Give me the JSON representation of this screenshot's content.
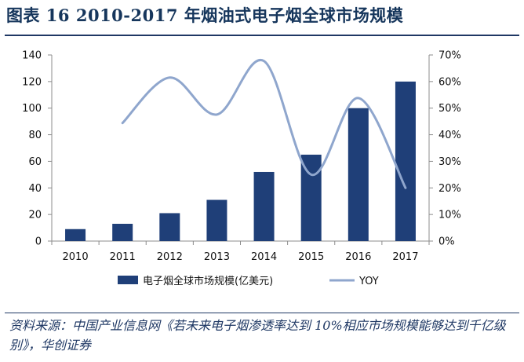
{
  "figure_title": "图表 16   2010-2017 年烟油式电子烟全球市场规模",
  "source_note": "资料来源：中国产业信息网《若未来电子烟渗透率达到 10%相应市场规模能够达到千亿级别》，华创证券",
  "colors": {
    "bar": "#1f3f78",
    "line": "#8fa6cd",
    "title": "#16365c",
    "rule": "#1f3864"
  },
  "chart_data": {
    "type": "bar",
    "categories": [
      "2010",
      "2011",
      "2012",
      "2013",
      "2014",
      "2015",
      "2016",
      "2017"
    ],
    "series": [
      {
        "name": "电子烟全球市场规模(亿美元)",
        "type": "bar",
        "axis": "left",
        "values": [
          9,
          13,
          21,
          31,
          52,
          65,
          100,
          120
        ]
      },
      {
        "name": "YOY",
        "type": "line",
        "axis": "right",
        "smooth": true,
        "values": [
          null,
          44.4,
          61.5,
          47.6,
          67.7,
          25.0,
          53.8,
          20.0
        ]
      }
    ],
    "ylim": [
      0,
      140
    ],
    "yticks": [
      "0",
      "20",
      "40",
      "60",
      "80",
      "100",
      "120",
      "140"
    ],
    "y2lim": [
      0,
      70
    ],
    "y2ticks": [
      "0%",
      "10%",
      "20%",
      "30%",
      "40%",
      "50%",
      "60%",
      "70%"
    ],
    "legend_position": "bottom",
    "grid": false
  }
}
